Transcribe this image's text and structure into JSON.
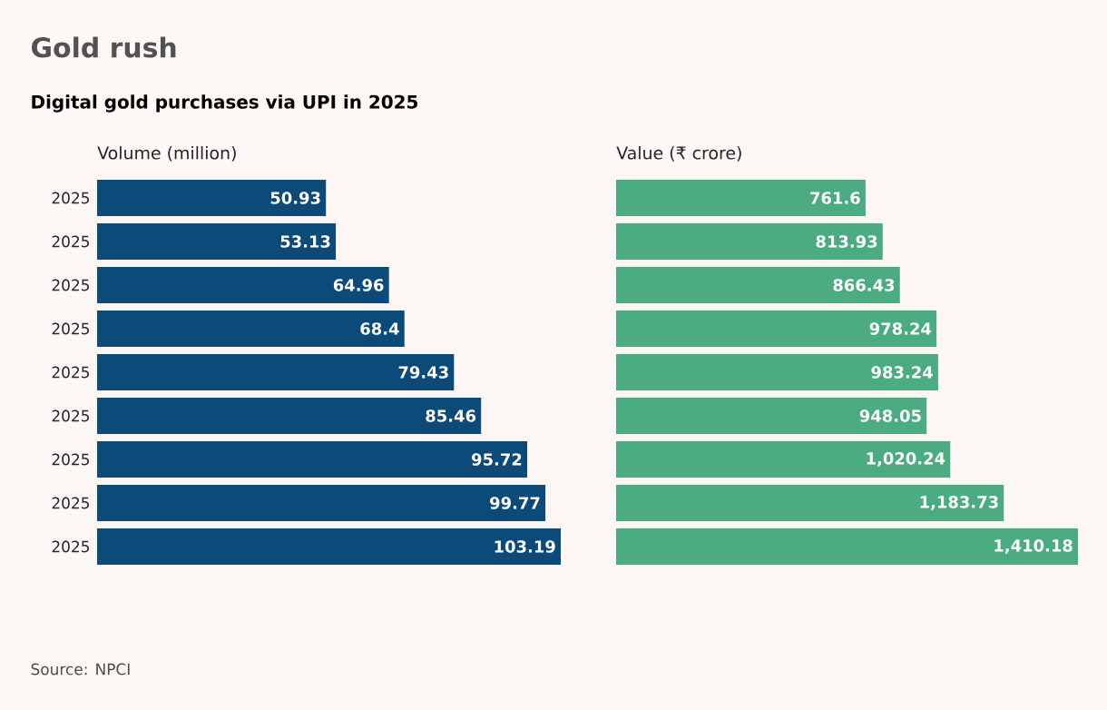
{
  "chart_data": [
    {
      "type": "bar",
      "orientation": "horizontal",
      "title": "Gold rush",
      "subtitle": "Digital gold purchases via UPI in 2025",
      "xlabel": "Volume (million)",
      "categories": [
        "2025",
        "2025",
        "2025",
        "2025",
        "2025",
        "2025",
        "2025",
        "2025",
        "2025"
      ],
      "values": [
        50.93,
        53.13,
        64.96,
        68.4,
        79.43,
        85.46,
        95.72,
        99.77,
        103.19
      ],
      "value_labels": [
        "50.93",
        "53.13",
        "64.96",
        "68.4",
        "79.43",
        "85.46",
        "95.72",
        "99.77",
        "103.19"
      ],
      "color": "#0c4a7a",
      "tick_labels": "y",
      "annotations": [
        "Source: NPCI"
      ]
    },
    {
      "type": "bar",
      "orientation": "horizontal",
      "xlabel": "Value (₹ crore)",
      "categories": [
        null,
        null,
        null,
        null,
        null,
        null,
        null,
        null,
        null
      ],
      "values": [
        761.6,
        813.93,
        866.43,
        978.24,
        983.24,
        948.05,
        1020.24,
        1183.73,
        1410.18
      ],
      "value_labels": [
        "761.6",
        "813.93",
        "866.43",
        "978.24",
        "983.24",
        "948.05",
        "1,020.24",
        "1,183.73",
        "1,410.18"
      ],
      "color": "#4aac80",
      "tick_labels": false
    }
  ]
}
